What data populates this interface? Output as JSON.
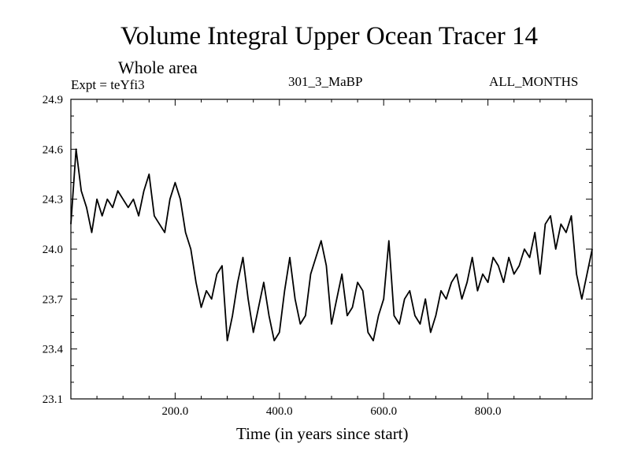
{
  "chart_data": {
    "type": "line",
    "title": "Volume Integral Upper Ocean Tracer 14",
    "subtitle": "Whole area",
    "experiment_label": "Expt = teYfi3",
    "period_label": "301_3_MaBP",
    "months_label": "ALL_MONTHS",
    "xlabel": "Time (in years since start)",
    "ylabel": "",
    "xlim": [
      0,
      1000
    ],
    "ylim": [
      23.1,
      24.9
    ],
    "xticks": [
      200,
      400,
      600,
      800
    ],
    "xtick_labels": [
      "200.0",
      "400.0",
      "600.0",
      "800.0"
    ],
    "yticks": [
      23.1,
      23.4,
      23.7,
      24.0,
      24.3,
      24.6,
      24.9
    ],
    "ytick_labels": [
      "23.1",
      "23.4",
      "23.7",
      "24.0",
      "24.3",
      "24.6",
      "24.9"
    ],
    "grid": false,
    "series": [
      {
        "name": "Tracer 14",
        "color": "#000000",
        "x": [
          0,
          10,
          20,
          30,
          40,
          50,
          60,
          70,
          80,
          90,
          100,
          110,
          120,
          130,
          140,
          150,
          160,
          170,
          180,
          190,
          200,
          210,
          220,
          230,
          240,
          250,
          260,
          270,
          280,
          290,
          300,
          310,
          320,
          330,
          340,
          350,
          360,
          370,
          380,
          390,
          400,
          410,
          420,
          430,
          440,
          450,
          460,
          470,
          480,
          490,
          500,
          510,
          520,
          530,
          540,
          550,
          560,
          570,
          580,
          590,
          600,
          610,
          620,
          630,
          640,
          650,
          660,
          670,
          680,
          690,
          700,
          710,
          720,
          730,
          740,
          750,
          760,
          770,
          780,
          790,
          800,
          810,
          820,
          830,
          840,
          850,
          860,
          870,
          880,
          890,
          900,
          910,
          920,
          930,
          940,
          950,
          960,
          970,
          980,
          990,
          1000
        ],
        "values": [
          24.15,
          24.6,
          24.35,
          24.25,
          24.1,
          24.3,
          24.2,
          24.3,
          24.25,
          24.35,
          24.3,
          24.25,
          24.3,
          24.2,
          24.35,
          24.45,
          24.2,
          24.15,
          24.1,
          24.3,
          24.4,
          24.3,
          24.1,
          24.0,
          23.8,
          23.65,
          23.75,
          23.7,
          23.85,
          23.9,
          23.45,
          23.6,
          23.8,
          23.95,
          23.7,
          23.5,
          23.65,
          23.8,
          23.6,
          23.45,
          23.5,
          23.75,
          23.95,
          23.7,
          23.55,
          23.6,
          23.85,
          23.95,
          24.05,
          23.9,
          23.55,
          23.7,
          23.85,
          23.6,
          23.65,
          23.8,
          23.75,
          23.5,
          23.45,
          23.6,
          23.7,
          24.05,
          23.6,
          23.55,
          23.7,
          23.75,
          23.6,
          23.55,
          23.7,
          23.5,
          23.6,
          23.75,
          23.7,
          23.8,
          23.85,
          23.7,
          23.8,
          23.95,
          23.75,
          23.85,
          23.8,
          23.95,
          23.9,
          23.8,
          23.95,
          23.85,
          23.9,
          24.0,
          23.95,
          24.1,
          23.85,
          24.15,
          24.2,
          24.0,
          24.15,
          24.1,
          24.2,
          23.85,
          23.7,
          23.85,
          24.0
        ]
      }
    ]
  }
}
